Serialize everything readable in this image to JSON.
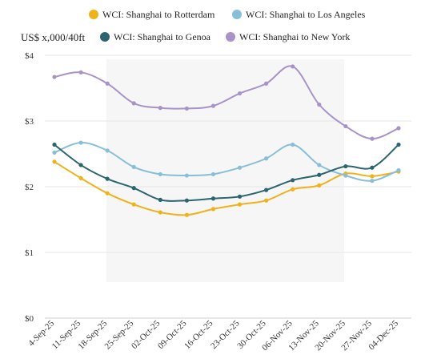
{
  "chart_data": {
    "type": "line",
    "ylabel": "US$ x,000/40ft",
    "ylim": [
      0,
      4
    ],
    "yticks": [
      0,
      1,
      2,
      3,
      4
    ],
    "ytick_labels": [
      "$0",
      "$1",
      "$2",
      "$3",
      "$4"
    ],
    "grid": "horizontal",
    "legend_position": "top",
    "categories": [
      "4-Sep-25",
      "11-Sep-25",
      "18-Sep-25",
      "25-Sep-25",
      "02-Oct-25",
      "09-Oct-25",
      "16-Oct-25",
      "23-Oct-25",
      "30-Oct-25",
      "06-Nov-25",
      "13-Nov-25",
      "20-Nov-25",
      "27-Nov-25",
      "04-Dec-25"
    ],
    "series": [
      {
        "name": "WCI: Shanghai to Rotterdam",
        "color": "#f0b21b",
        "values": [
          2.38,
          2.13,
          1.9,
          1.73,
          1.61,
          1.57,
          1.66,
          1.73,
          1.79,
          1.96,
          2.02,
          2.2,
          2.16,
          2.23
        ]
      },
      {
        "name": "WCI: Shanghai to Los Angeles",
        "color": "#87bfd8",
        "values": [
          2.52,
          2.67,
          2.55,
          2.3,
          2.19,
          2.17,
          2.19,
          2.29,
          2.43,
          2.64,
          2.33,
          2.17,
          2.09,
          2.25
        ]
      },
      {
        "name": "WCI: Shanghai to Genoa",
        "color": "#2c6470",
        "values": [
          2.64,
          2.33,
          2.12,
          1.98,
          1.8,
          1.79,
          1.82,
          1.85,
          1.95,
          2.1,
          2.18,
          2.31,
          2.29,
          2.64
        ]
      },
      {
        "name": "WCI: Shanghai to New York",
        "color": "#a893c8",
        "values": [
          3.67,
          3.74,
          3.57,
          3.27,
          3.2,
          3.19,
          3.23,
          3.42,
          3.57,
          3.83,
          3.25,
          2.92,
          2.73,
          2.89
        ]
      }
    ]
  }
}
